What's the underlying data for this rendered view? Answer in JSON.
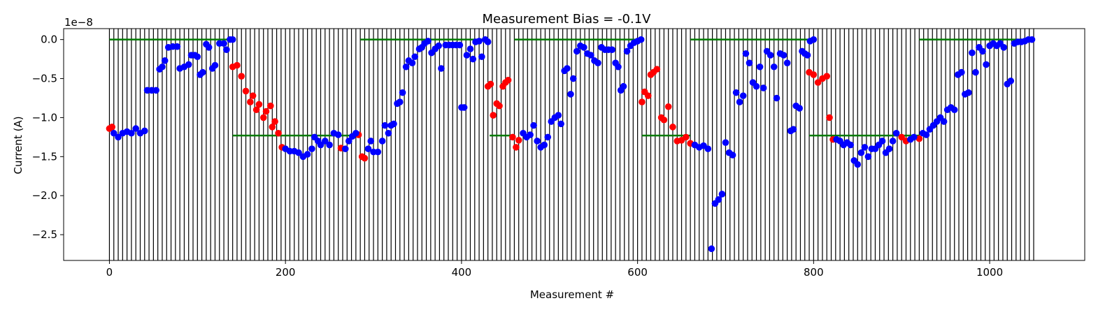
{
  "chart_data": {
    "type": "scatter",
    "title": "Measurement Bias = -0.1V",
    "xlabel": "Measurement #",
    "ylabel": "Current (A)",
    "y_offset_text": "1e−8",
    "xlim": [
      -52,
      1108
    ],
    "ylim": [
      -2.83,
      0.14
    ],
    "y_scale_factor": 1e-08,
    "x_ticks": [
      0,
      200,
      400,
      600,
      800,
      1000
    ],
    "x_tick_labels": [
      "0",
      "200",
      "400",
      "600",
      "800",
      "1000"
    ],
    "y_ticks": [
      0.0,
      -0.5,
      -1.0,
      -1.5,
      -2.0,
      -2.5
    ],
    "y_tick_labels": [
      "0.0",
      "−0.5",
      "−1.0",
      "−1.5",
      "−2.0",
      "−2.5"
    ],
    "vertical_lines": {
      "start": 0,
      "end": 1050,
      "step": 5,
      "color": "#000000"
    },
    "reference_segments": [
      {
        "x": [
          0,
          140
        ],
        "y": 0.0
      },
      {
        "x": 140,
        "y": -1.23,
        "x_end": 285
      },
      {
        "x": 285,
        "y": 0.0,
        "x_end": 432
      },
      {
        "x": 432,
        "y": -1.23,
        "x_end": 460
      },
      {
        "x": 460,
        "y": 0.0,
        "x_end": 605
      },
      {
        "x": 605,
        "y": -1.23,
        "x_end": 660
      },
      {
        "x": 660,
        "y": 0.0,
        "x_end": 795
      },
      {
        "x": 795,
        "y": -1.23,
        "x_end": 920
      },
      {
        "x": 920,
        "y": 0.0,
        "x_end": 1050
      }
    ],
    "reference_color": "#007a00",
    "series": [
      {
        "color": "#ff0000",
        "points": [
          [
            0,
            -1.14
          ],
          [
            3,
            -1.12
          ],
          [
            140,
            -0.35
          ],
          [
            145,
            -0.33
          ],
          [
            150,
            -0.47
          ],
          [
            155,
            -0.66
          ],
          [
            160,
            -0.8
          ],
          [
            163,
            -0.72
          ],
          [
            167,
            -0.9
          ],
          [
            170,
            -0.83
          ],
          [
            175,
            -1.0
          ],
          [
            178,
            -0.92
          ],
          [
            183,
            -0.85
          ],
          [
            185,
            -1.12
          ],
          [
            188,
            -1.05
          ],
          [
            192,
            -1.2
          ],
          [
            196,
            -1.38
          ],
          [
            263,
            -1.39
          ],
          [
            283,
            -1.22
          ],
          [
            287,
            -1.5
          ],
          [
            290,
            -1.52
          ],
          [
            430,
            -0.6
          ],
          [
            433,
            -0.57
          ],
          [
            436,
            -0.97
          ],
          [
            440,
            -0.82
          ],
          [
            443,
            -0.85
          ],
          [
            447,
            -0.6
          ],
          [
            450,
            -0.55
          ],
          [
            453,
            -0.52
          ],
          [
            458,
            -1.25
          ],
          [
            462,
            -1.38
          ],
          [
            465,
            -1.29
          ],
          [
            605,
            -0.8
          ],
          [
            608,
            -0.67
          ],
          [
            612,
            -0.72
          ],
          [
            615,
            -0.45
          ],
          [
            618,
            -0.42
          ],
          [
            622,
            -0.38
          ],
          [
            627,
            -1.0
          ],
          [
            630,
            -1.03
          ],
          [
            635,
            -0.86
          ],
          [
            640,
            -1.12
          ],
          [
            645,
            -1.3
          ],
          [
            650,
            -1.29
          ],
          [
            655,
            -1.25
          ],
          [
            660,
            -1.33
          ],
          [
            795,
            -0.42
          ],
          [
            800,
            -0.45
          ],
          [
            805,
            -0.55
          ],
          [
            810,
            -0.5
          ],
          [
            815,
            -0.47
          ],
          [
            818,
            -1.0
          ],
          [
            822,
            -1.28
          ],
          [
            900,
            -1.25
          ],
          [
            905,
            -1.3
          ],
          [
            920,
            -1.27
          ]
        ]
      },
      {
        "color": "#0000ff",
        "points": [
          [
            5,
            -1.2
          ],
          [
            10,
            -1.25
          ],
          [
            15,
            -1.2
          ],
          [
            20,
            -1.18
          ],
          [
            25,
            -1.2
          ],
          [
            30,
            -1.14
          ],
          [
            35,
            -1.2
          ],
          [
            40,
            -1.17
          ],
          [
            43,
            -0.65
          ],
          [
            48,
            -0.65
          ],
          [
            53,
            -0.65
          ],
          [
            57,
            -0.38
          ],
          [
            60,
            -0.35
          ],
          [
            63,
            -0.27
          ],
          [
            67,
            -0.1
          ],
          [
            72,
            -0.09
          ],
          [
            77,
            -0.09
          ],
          [
            80,
            -0.37
          ],
          [
            85,
            -0.35
          ],
          [
            90,
            -0.32
          ],
          [
            93,
            -0.2
          ],
          [
            97,
            -0.2
          ],
          [
            100,
            -0.22
          ],
          [
            103,
            -0.45
          ],
          [
            106,
            -0.42
          ],
          [
            110,
            -0.06
          ],
          [
            113,
            -0.1
          ],
          [
            117,
            -0.37
          ],
          [
            120,
            -0.33
          ],
          [
            125,
            -0.05
          ],
          [
            130,
            -0.05
          ],
          [
            133,
            -0.13
          ],
          [
            137,
            0.0
          ],
          [
            140,
            0.0
          ],
          [
            200,
            -1.4
          ],
          [
            205,
            -1.43
          ],
          [
            210,
            -1.43
          ],
          [
            215,
            -1.45
          ],
          [
            220,
            -1.5
          ],
          [
            225,
            -1.47
          ],
          [
            230,
            -1.4
          ],
          [
            233,
            -1.25
          ],
          [
            237,
            -1.3
          ],
          [
            240,
            -1.35
          ],
          [
            245,
            -1.3
          ],
          [
            250,
            -1.35
          ],
          [
            255,
            -1.2
          ],
          [
            260,
            -1.22
          ],
          [
            268,
            -1.4
          ],
          [
            272,
            -1.3
          ],
          [
            276,
            -1.24
          ],
          [
            280,
            -1.2
          ],
          [
            294,
            -1.4
          ],
          [
            297,
            -1.3
          ],
          [
            300,
            -1.44
          ],
          [
            305,
            -1.44
          ],
          [
            310,
            -1.3
          ],
          [
            313,
            -1.1
          ],
          [
            317,
            -1.2
          ],
          [
            320,
            -1.1
          ],
          [
            323,
            -1.08
          ],
          [
            327,
            -0.82
          ],
          [
            330,
            -0.8
          ],
          [
            333,
            -0.68
          ],
          [
            337,
            -0.35
          ],
          [
            340,
            -0.27
          ],
          [
            344,
            -0.3
          ],
          [
            347,
            -0.22
          ],
          [
            352,
            -0.12
          ],
          [
            355,
            -0.1
          ],
          [
            358,
            -0.05
          ],
          [
            362,
            -0.02
          ],
          [
            366,
            -0.17
          ],
          [
            370,
            -0.12
          ],
          [
            374,
            -0.08
          ],
          [
            377,
            -0.37
          ],
          [
            382,
            -0.07
          ],
          [
            386,
            -0.07
          ],
          [
            390,
            -0.07
          ],
          [
            394,
            -0.07
          ],
          [
            398,
            -0.07
          ],
          [
            400,
            -0.87
          ],
          [
            403,
            -0.87
          ],
          [
            406,
            -0.2
          ],
          [
            410,
            -0.12
          ],
          [
            413,
            -0.25
          ],
          [
            416,
            -0.03
          ],
          [
            420,
            -0.02
          ],
          [
            423,
            -0.22
          ],
          [
            427,
            0.0
          ],
          [
            430,
            -0.03
          ],
          [
            470,
            -1.2
          ],
          [
            474,
            -1.25
          ],
          [
            478,
            -1.22
          ],
          [
            482,
            -1.1
          ],
          [
            486,
            -1.3
          ],
          [
            490,
            -1.38
          ],
          [
            494,
            -1.35
          ],
          [
            498,
            -1.25
          ],
          [
            502,
            -1.05
          ],
          [
            506,
            -1.0
          ],
          [
            510,
            -0.97
          ],
          [
            513,
            -1.08
          ],
          [
            517,
            -0.4
          ],
          [
            520,
            -0.37
          ],
          [
            524,
            -0.7
          ],
          [
            527,
            -0.5
          ],
          [
            531,
            -0.15
          ],
          [
            535,
            -0.08
          ],
          [
            539,
            -0.1
          ],
          [
            543,
            -0.18
          ],
          [
            547,
            -0.2
          ],
          [
            551,
            -0.27
          ],
          [
            555,
            -0.3
          ],
          [
            559,
            -0.1
          ],
          [
            563,
            -0.13
          ],
          [
            567,
            -0.13
          ],
          [
            571,
            -0.13
          ],
          [
            575,
            -0.3
          ],
          [
            578,
            -0.35
          ],
          [
            581,
            -0.65
          ],
          [
            584,
            -0.6
          ],
          [
            588,
            -0.15
          ],
          [
            592,
            -0.08
          ],
          [
            596,
            -0.04
          ],
          [
            600,
            -0.02
          ],
          [
            604,
            0.0
          ],
          [
            665,
            -1.35
          ],
          [
            670,
            -1.38
          ],
          [
            675,
            -1.36
          ],
          [
            680,
            -1.4
          ],
          [
            684,
            -2.68
          ],
          [
            688,
            -2.1
          ],
          [
            692,
            -2.05
          ],
          [
            696,
            -1.98
          ],
          [
            700,
            -1.32
          ],
          [
            704,
            -1.45
          ],
          [
            708,
            -1.48
          ],
          [
            712,
            -0.68
          ],
          [
            716,
            -0.8
          ],
          [
            720,
            -0.72
          ],
          [
            723,
            -0.18
          ],
          [
            727,
            -0.3
          ],
          [
            731,
            -0.55
          ],
          [
            735,
            -0.6
          ],
          [
            739,
            -0.35
          ],
          [
            743,
            -0.62
          ],
          [
            747,
            -0.15
          ],
          [
            751,
            -0.2
          ],
          [
            755,
            -0.35
          ],
          [
            758,
            -0.75
          ],
          [
            762,
            -0.18
          ],
          [
            766,
            -0.2
          ],
          [
            770,
            -0.3
          ],
          [
            774,
            -1.17
          ],
          [
            777,
            -1.15
          ],
          [
            780,
            -0.85
          ],
          [
            784,
            -0.88
          ],
          [
            787,
            -0.15
          ],
          [
            790,
            -0.18
          ],
          [
            793,
            -0.2
          ],
          [
            796,
            -0.02
          ],
          [
            800,
            0.0
          ],
          [
            826,
            -1.28
          ],
          [
            830,
            -1.3
          ],
          [
            834,
            -1.35
          ],
          [
            838,
            -1.32
          ],
          [
            842,
            -1.35
          ],
          [
            846,
            -1.55
          ],
          [
            850,
            -1.6
          ],
          [
            854,
            -1.45
          ],
          [
            858,
            -1.38
          ],
          [
            862,
            -1.5
          ],
          [
            866,
            -1.4
          ],
          [
            870,
            -1.4
          ],
          [
            874,
            -1.35
          ],
          [
            878,
            -1.3
          ],
          [
            882,
            -1.45
          ],
          [
            886,
            -1.4
          ],
          [
            890,
            -1.3
          ],
          [
            894,
            -1.2
          ],
          [
            910,
            -1.28
          ],
          [
            914,
            -1.25
          ],
          [
            924,
            -1.2
          ],
          [
            928,
            -1.22
          ],
          [
            932,
            -1.15
          ],
          [
            936,
            -1.1
          ],
          [
            940,
            -1.05
          ],
          [
            944,
            -1.0
          ],
          [
            948,
            -1.05
          ],
          [
            952,
            -0.9
          ],
          [
            956,
            -0.87
          ],
          [
            960,
            -0.9
          ],
          [
            964,
            -0.45
          ],
          [
            968,
            -0.42
          ],
          [
            972,
            -0.7
          ],
          [
            976,
            -0.68
          ],
          [
            980,
            -0.17
          ],
          [
            984,
            -0.42
          ],
          [
            988,
            -0.1
          ],
          [
            992,
            -0.15
          ],
          [
            996,
            -0.32
          ],
          [
            1000,
            -0.08
          ],
          [
            1004,
            -0.05
          ],
          [
            1008,
            -0.08
          ],
          [
            1012,
            -0.05
          ],
          [
            1016,
            -0.1
          ],
          [
            1020,
            -0.57
          ],
          [
            1024,
            -0.53
          ],
          [
            1028,
            -0.05
          ],
          [
            1032,
            -0.03
          ],
          [
            1036,
            -0.03
          ],
          [
            1040,
            -0.02
          ],
          [
            1044,
            0.0
          ],
          [
            1048,
            0.0
          ]
        ]
      }
    ]
  }
}
